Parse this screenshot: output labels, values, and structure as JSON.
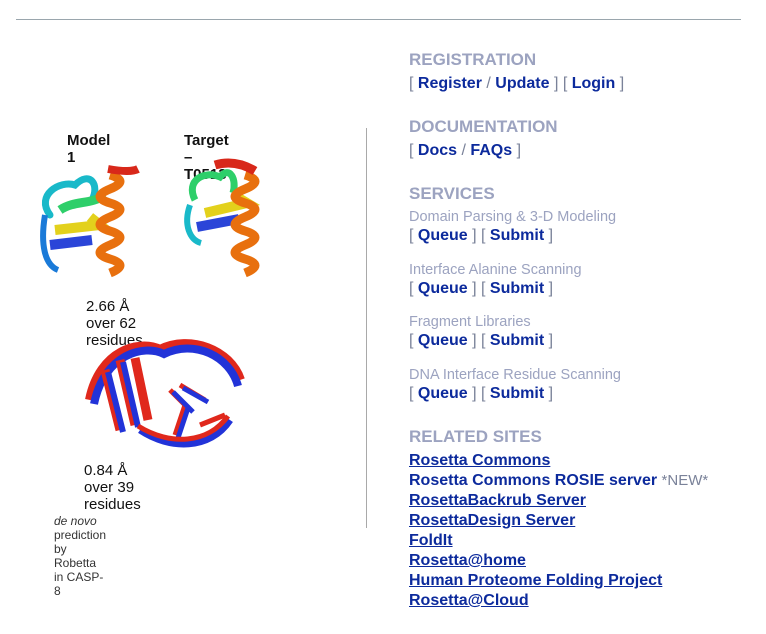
{
  "figure": {
    "model_label": "Model 1",
    "target_label": "Target – T0513",
    "rmsd_top": "2.66 Å over 62 residues",
    "rmsd_bottom": "0.84 Å over 39 residues",
    "caption_italic": "de novo",
    "caption_rest": " prediction by Robetta in CASP-8"
  },
  "registration": {
    "title": "REGISTRATION",
    "register": "Register",
    "update": "Update",
    "login": "Login"
  },
  "documentation": {
    "title": "DOCUMENTATION",
    "docs": "Docs",
    "faqs": "FAQs"
  },
  "services": {
    "title": "SERVICES",
    "items": [
      {
        "name": "Domain Parsing & 3-D Modeling",
        "queue": "Queue",
        "submit": "Submit"
      },
      {
        "name": "Interface Alanine Scanning",
        "queue": "Queue",
        "submit": "Submit"
      },
      {
        "name": "Fragment Libraries",
        "queue": "Queue",
        "submit": "Submit"
      },
      {
        "name": "DNA Interface Residue Scanning",
        "queue": "Queue",
        "submit": "Submit"
      }
    ]
  },
  "related": {
    "title": "RELATED SITES",
    "links": [
      "Rosetta Commons",
      "Rosetta Commons ROSIE server",
      "RosettaBackrub Server",
      "RosettaDesign Server",
      "FoldIt",
      "Rosetta@home",
      "Human Proteome Folding Project",
      "Rosetta@Cloud"
    ],
    "new_tag": "*NEW*"
  },
  "colors": {
    "section_title": "#9ca3c0",
    "link": "#0c2a9c",
    "bracket": "#7a8299"
  }
}
